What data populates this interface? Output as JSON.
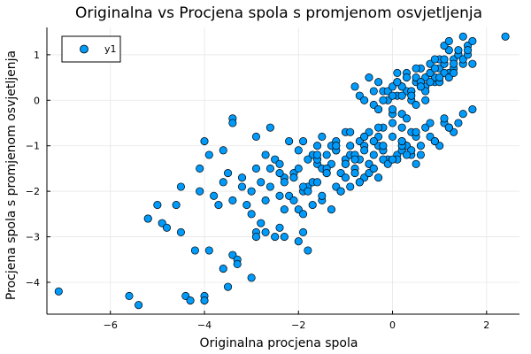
{
  "chart_data": {
    "type": "scatter",
    "title": "Originalna vs Procjena spola s promjenom osvjetljenja",
    "xlabel": "Originalna procjena spola",
    "ylabel": "Procjena spola s promjenom osvjetljenja",
    "xlim": [
      -7.35,
      2.7
    ],
    "ylim": [
      -4.7,
      1.6
    ],
    "xticks": [
      -6,
      -4,
      -2,
      0,
      2
    ],
    "yticks": [
      -4,
      -3,
      -2,
      -1,
      0,
      1
    ],
    "xtick_labels": [
      "−6",
      "−4",
      "−2",
      "0",
      "2"
    ],
    "ytick_labels": [
      "−4",
      "−3",
      "−2",
      "−1",
      "0",
      "1"
    ],
    "grid": true,
    "legend_position": "top-left",
    "series": [
      {
        "name": "y1",
        "color": "#009AFA",
        "x": [
          -7.1,
          -5.6,
          -5.4,
          -5.2,
          -4.9,
          -4.5,
          -4.4,
          -4.3,
          -4.2,
          -4.0,
          -4.0,
          -3.9,
          -3.6,
          -3.5,
          -3.4,
          -3.3,
          -3.3,
          -3.0,
          -2.9,
          -2.9,
          -2.7,
          -2.5,
          -2.4,
          -2.3,
          -2.0,
          -1.9,
          -1.8,
          -3.4,
          -3.6,
          -3.5,
          -3.9,
          -4.0,
          -4.1,
          -5.0,
          -5.2,
          -4.8,
          -4.6,
          -4.5,
          -4.1,
          -3.8,
          -3.7,
          -3.6,
          -3.4,
          -3.2,
          -3.1,
          -3.0,
          -2.8,
          -2.8,
          -2.6,
          -2.4,
          -2.3,
          -2.1,
          -2.0,
          -1.9,
          -1.8,
          -1.7,
          -1.6,
          -1.5,
          -1.4,
          -1.3,
          -1.2,
          -1.1,
          -1.0,
          -0.9,
          -0.8,
          -0.7,
          -0.6,
          -0.5,
          -0.4,
          -0.3,
          -0.2,
          -0.1,
          -2.7,
          -2.5,
          -2.4,
          -2.2,
          -2.0,
          -1.9,
          -1.7,
          -1.6,
          -1.5,
          -1.3,
          -1.2,
          -1.0,
          -0.9,
          -0.7,
          -0.6,
          -0.5,
          -0.3,
          -0.2,
          0.0,
          -3.2,
          -3.0,
          -2.9,
          -2.7,
          -2.6,
          -2.4,
          -2.3,
          -2.2,
          -2.1,
          -1.9,
          -1.8,
          -1.6,
          -1.5,
          -1.4,
          -1.2,
          -1.1,
          -1.0,
          -0.8,
          -0.7,
          -0.5,
          -0.4,
          -0.2,
          0.1,
          0.2,
          -2.3,
          -2.1,
          -1.9,
          -1.7,
          -1.5,
          -1.3,
          -1.1,
          -0.9,
          -0.7,
          -0.5,
          -0.3,
          -0.1,
          0.1,
          0.3,
          -1.6,
          -1.4,
          -1.2,
          -1.0,
          -0.8,
          -0.6,
          -0.4,
          -0.2,
          0.0,
          0.2,
          0.4,
          -2.0,
          -1.8,
          -1.6,
          -1.4,
          -1.2,
          -1.0,
          -0.8,
          -0.6,
          -0.4,
          -0.2,
          -3.4,
          -2.9,
          -2.6,
          -0.9,
          -0.6,
          -0.3,
          0.2,
          0.3,
          0.4,
          0.5,
          -0.8,
          -0.7,
          -0.6,
          -0.4,
          -0.3,
          -0.2,
          -0.1,
          0.0,
          0.1,
          0.2,
          0.3,
          0.4,
          0.5,
          0.6,
          0.7,
          0.8,
          0.9,
          1.0,
          1.1,
          1.2,
          1.3,
          1.4,
          1.5,
          1.6,
          1.7,
          -0.5,
          -0.3,
          -0.1,
          0.0,
          0.1,
          0.2,
          0.3,
          0.4,
          0.5,
          0.6,
          0.7,
          0.8,
          0.9,
          1.0,
          1.1,
          1.2,
          1.3,
          1.4,
          1.5,
          -0.4,
          -0.2,
          0.0,
          0.1,
          0.2,
          0.3,
          0.4,
          0.5,
          0.6,
          0.7,
          0.8,
          0.9,
          1.0,
          1.1,
          1.2,
          1.3,
          1.4,
          1.6,
          1.7,
          0.0,
          0.1,
          0.2,
          0.4,
          0.5,
          0.6,
          0.7,
          0.8,
          0.9,
          1.0,
          1.1,
          1.2,
          1.3,
          1.5,
          1.6,
          0.3,
          0.5,
          0.7,
          0.9,
          1.1,
          1.3,
          1.5,
          1.7,
          2.4,
          0.2,
          0.4,
          0.6,
          0.8,
          1.0,
          1.2,
          1.4,
          0.0,
          0.3,
          0.6,
          0.9,
          1.2,
          0.2,
          0.5,
          0.8,
          1.1
        ],
        "y": [
          -4.2,
          -4.3,
          -4.5,
          -2.6,
          -2.7,
          -2.9,
          -4.3,
          -4.4,
          -3.3,
          -4.3,
          -4.4,
          -3.3,
          -3.7,
          -4.1,
          -3.4,
          -3.5,
          -3.6,
          -3.9,
          -2.9,
          -3.0,
          -2.9,
          -3.0,
          -2.8,
          -3.0,
          -3.1,
          -2.9,
          -3.3,
          -0.4,
          -1.1,
          -1.6,
          -1.2,
          -0.9,
          -1.5,
          -2.3,
          -2.6,
          -2.8,
          -2.3,
          -1.9,
          -2.0,
          -2.1,
          -2.3,
          -1.8,
          -2.2,
          -1.9,
          -2.3,
          -2.5,
          -2.7,
          -1.8,
          -1.5,
          -2.1,
          -1.7,
          -1.6,
          -2.4,
          -2.0,
          -1.9,
          -1.8,
          -1.4,
          -1.5,
          -1.2,
          -1.4,
          -1.1,
          -1.6,
          -1.3,
          -1.2,
          -1.5,
          -1.3,
          -1.7,
          -1.4,
          -1.2,
          -1.0,
          -1.1,
          -1.3,
          -1.2,
          -1.3,
          -1.4,
          -0.9,
          -1.1,
          -0.9,
          -1.2,
          -1.0,
          -0.8,
          -1.0,
          -0.9,
          -0.7,
          -1.0,
          -0.9,
          -0.8,
          -0.7,
          -0.8,
          -0.6,
          -0.5,
          -1.7,
          -2.0,
          -1.5,
          -2.2,
          -1.9,
          -1.6,
          -1.8,
          -2.1,
          -1.7,
          -1.9,
          -2.0,
          -1.8,
          -2.2,
          -1.6,
          -1.9,
          -2.0,
          -1.7,
          -1.6,
          -1.8,
          -1.4,
          -1.5,
          -1.3,
          -1.2,
          -1.1,
          -2.4,
          -2.2,
          -2.5,
          -2.3,
          -2.1,
          -2.4,
          -2.0,
          -1.9,
          -1.8,
          -1.6,
          -1.7,
          -1.4,
          -1.3,
          -1.0,
          -1.3,
          -1.5,
          -1.1,
          -1.4,
          -1.2,
          -1.0,
          -0.9,
          -1.1,
          -0.8,
          -0.6,
          -0.7,
          -1.5,
          -1.3,
          -1.2,
          -1.6,
          -1.0,
          -1.4,
          -1.3,
          -1.1,
          -1.5,
          -1.0,
          -0.5,
          -0.8,
          -0.6,
          -0.7,
          -0.8,
          -0.6,
          -0.9,
          -1.0,
          -1.2,
          -1.4,
          0.3,
          0.1,
          0.0,
          -0.1,
          -0.2,
          0.2,
          0.0,
          -0.3,
          0.1,
          0.3,
          0.2,
          0.0,
          0.4,
          0.3,
          0.5,
          0.6,
          0.4,
          0.7,
          0.8,
          0.6,
          0.9,
          1.0,
          0.8,
          1.2,
          1.3,
          0.5,
          0.4,
          0.2,
          0.1,
          0.4,
          0.3,
          0.6,
          0.2,
          0.5,
          0.7,
          0.3,
          0.8,
          0.5,
          0.9,
          0.6,
          1.1,
          0.7,
          1.0,
          0.9,
          0.2,
          0.0,
          0.3,
          0.6,
          0.1,
          0.5,
          0.2,
          0.7,
          0.4,
          0.2,
          0.6,
          0.9,
          0.4,
          1.2,
          0.5,
          0.8,
          1.1,
          1.0,
          0.8,
          -0.2,
          0.4,
          -0.3,
          0.1,
          -0.1,
          0.3,
          0.0,
          0.4,
          0.7,
          0.5,
          0.9,
          1.3,
          0.6,
          1.4,
          1.1,
          -0.4,
          -0.8,
          -0.6,
          -0.9,
          -0.5,
          -0.7,
          -0.3,
          -0.2,
          1.4,
          -1.0,
          -1.1,
          -1.2,
          -0.8,
          -1.0,
          -0.6,
          -0.5,
          -1.3,
          -1.2,
          -1.0,
          -0.9,
          -0.6,
          -0.9,
          -0.7,
          -0.5,
          -0.4
        ]
      }
    ]
  }
}
